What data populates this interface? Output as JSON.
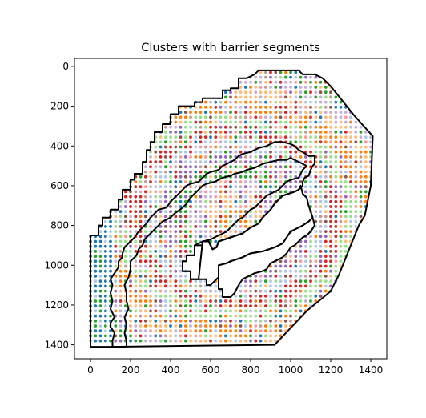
{
  "chart_data": {
    "type": "scatter",
    "title": "Clusters with barrier segments",
    "xlabel": "",
    "ylabel": "",
    "xlim": [
      -80,
      1480
    ],
    "ylim": [
      1470,
      -40
    ],
    "y_inverted": true,
    "grid": false,
    "xticks": [
      0,
      200,
      400,
      600,
      800,
      1000,
      1200,
      1400
    ],
    "yticks": [
      0,
      200,
      400,
      600,
      800,
      1000,
      1200,
      1400
    ],
    "spot_spacing": 25,
    "cluster_colors": [
      "#1f77b4",
      "#aec7e8",
      "#ff7f0e",
      "#ffbb78",
      "#2ca02c",
      "#98df8a",
      "#d62728",
      "#ff9896",
      "#9467bd",
      "#c5b0d5",
      "#8c564b",
      "#c49c94",
      "#e377c2",
      "#f7b6d2",
      "#7f7f7f",
      "#c7c7c7",
      "#bcbd22",
      "#dbdb8d",
      "#17becf",
      "#9edae5"
    ],
    "barrier_color": "#000000",
    "outer_boundary": [
      [
        0,
        1410
      ],
      [
        0,
        850
      ],
      [
        40,
        850
      ],
      [
        40,
        800
      ],
      [
        60,
        800
      ],
      [
        60,
        760
      ],
      [
        100,
        760
      ],
      [
        100,
        720
      ],
      [
        140,
        720
      ],
      [
        140,
        670
      ],
      [
        160,
        670
      ],
      [
        160,
        620
      ],
      [
        200,
        620
      ],
      [
        200,
        570
      ],
      [
        220,
        570
      ],
      [
        220,
        540
      ],
      [
        260,
        540
      ],
      [
        260,
        480
      ],
      [
        280,
        480
      ],
      [
        280,
        420
      ],
      [
        300,
        420
      ],
      [
        300,
        380
      ],
      [
        320,
        380
      ],
      [
        320,
        330
      ],
      [
        360,
        330
      ],
      [
        360,
        290
      ],
      [
        400,
        290
      ],
      [
        400,
        240
      ],
      [
        440,
        240
      ],
      [
        440,
        200
      ],
      [
        520,
        200
      ],
      [
        520,
        180
      ],
      [
        560,
        180
      ],
      [
        560,
        160
      ],
      [
        660,
        160
      ],
      [
        660,
        120
      ],
      [
        700,
        120
      ],
      [
        700,
        110
      ],
      [
        740,
        110
      ],
      [
        740,
        60
      ],
      [
        780,
        60
      ],
      [
        820,
        40
      ],
      [
        840,
        20
      ],
      [
        860,
        20
      ],
      [
        1040,
        20
      ],
      [
        1060,
        40
      ],
      [
        1120,
        40
      ],
      [
        1160,
        60
      ],
      [
        1200,
        100
      ],
      [
        1320,
        250
      ],
      [
        1410,
        350
      ],
      [
        1400,
        600
      ],
      [
        1380,
        700
      ],
      [
        1370,
        750
      ],
      [
        1340,
        800
      ],
      [
        1300,
        900
      ],
      [
        1260,
        1000
      ],
      [
        1240,
        1050
      ],
      [
        1200,
        1130
      ],
      [
        1080,
        1230
      ],
      [
        920,
        1400
      ],
      [
        100,
        1410
      ],
      [
        0,
        1410
      ]
    ],
    "inner_boundary": [
      [
        540,
        1070
      ],
      [
        500,
        1070
      ],
      [
        500,
        1030
      ],
      [
        460,
        1030
      ],
      [
        460,
        980
      ],
      [
        480,
        980
      ],
      [
        480,
        950
      ],
      [
        520,
        950
      ],
      [
        520,
        900
      ],
      [
        560,
        900
      ],
      [
        560,
        880
      ],
      [
        590,
        880
      ],
      [
        610,
        920
      ],
      [
        630,
        910
      ],
      [
        640,
        880
      ],
      [
        700,
        860
      ],
      [
        760,
        840
      ],
      [
        800,
        810
      ],
      [
        840,
        790
      ],
      [
        860,
        760
      ],
      [
        880,
        740
      ],
      [
        900,
        720
      ],
      [
        920,
        690
      ],
      [
        940,
        670
      ],
      [
        960,
        650
      ],
      [
        990,
        640
      ],
      [
        1020,
        630
      ],
      [
        1040,
        620
      ],
      [
        1060,
        600
      ],
      [
        1060,
        580
      ],
      [
        1070,
        560
      ],
      [
        1090,
        550
      ],
      [
        1100,
        520
      ],
      [
        1110,
        500
      ],
      [
        1120,
        490
      ],
      [
        1120,
        450
      ],
      [
        1090,
        450
      ],
      [
        1060,
        430
      ],
      [
        1040,
        420
      ],
      [
        1020,
        400
      ],
      [
        1000,
        390
      ],
      [
        960,
        380
      ],
      [
        920,
        380
      ],
      [
        900,
        390
      ],
      [
        880,
        400
      ],
      [
        840,
        410
      ],
      [
        820,
        420
      ],
      [
        800,
        430
      ],
      [
        760,
        440
      ],
      [
        740,
        450
      ],
      [
        720,
        470
      ],
      [
        700,
        480
      ],
      [
        680,
        490
      ],
      [
        660,
        500
      ],
      [
        640,
        520
      ],
      [
        600,
        530
      ],
      [
        580,
        540
      ],
      [
        560,
        560
      ],
      [
        540,
        580
      ],
      [
        500,
        590
      ],
      [
        480,
        600
      ],
      [
        460,
        620
      ],
      [
        440,
        640
      ],
      [
        420,
        660
      ],
      [
        400,
        680
      ],
      [
        380,
        710
      ],
      [
        340,
        720
      ],
      [
        320,
        740
      ],
      [
        300,
        760
      ],
      [
        280,
        790
      ],
      [
        260,
        810
      ],
      [
        240,
        830
      ],
      [
        220,
        860
      ],
      [
        200,
        880
      ],
      [
        170,
        910
      ],
      [
        160,
        940
      ],
      [
        160,
        960
      ],
      [
        140,
        980
      ],
      [
        140,
        1010
      ],
      [
        120,
        1040
      ],
      [
        100,
        1070
      ],
      [
        110,
        1100
      ],
      [
        100,
        1140
      ],
      [
        110,
        1180
      ],
      [
        100,
        1220
      ],
      [
        120,
        1260
      ],
      [
        100,
        1290
      ],
      [
        100,
        1310
      ],
      [
        120,
        1340
      ],
      [
        110,
        1380
      ],
      [
        110,
        1410
      ],
      [
        180,
        1410
      ],
      [
        180,
        1380
      ],
      [
        170,
        1340
      ],
      [
        180,
        1300
      ],
      [
        170,
        1260
      ],
      [
        190,
        1220
      ],
      [
        180,
        1180
      ],
      [
        180,
        1140
      ],
      [
        170,
        1100
      ],
      [
        190,
        1060
      ],
      [
        200,
        1020
      ],
      [
        200,
        980
      ],
      [
        230,
        950
      ],
      [
        240,
        920
      ],
      [
        260,
        900
      ],
      [
        270,
        870
      ],
      [
        300,
        840
      ],
      [
        330,
        810
      ],
      [
        360,
        780
      ],
      [
        400,
        760
      ],
      [
        420,
        740
      ],
      [
        460,
        710
      ],
      [
        480,
        690
      ],
      [
        500,
        660
      ],
      [
        520,
        640
      ],
      [
        540,
        620
      ],
      [
        560,
        600
      ],
      [
        580,
        590
      ],
      [
        620,
        580
      ],
      [
        640,
        570
      ],
      [
        660,
        560
      ],
      [
        700,
        550
      ],
      [
        720,
        540
      ],
      [
        760,
        530
      ],
      [
        780,
        520
      ],
      [
        820,
        510
      ],
      [
        860,
        490
      ],
      [
        900,
        480
      ],
      [
        940,
        470
      ],
      [
        980,
        470
      ],
      [
        1000,
        460
      ],
      [
        1020,
        470
      ],
      [
        1040,
        480
      ],
      [
        1060,
        490
      ],
      [
        1080,
        500
      ],
      [
        1060,
        520
      ],
      [
        1040,
        560
      ],
      [
        1000,
        570
      ],
      [
        980,
        580
      ],
      [
        960,
        600
      ],
      [
        940,
        620
      ],
      [
        920,
        630
      ],
      [
        900,
        640
      ],
      [
        880,
        650
      ],
      [
        860,
        670
      ],
      [
        840,
        690
      ],
      [
        820,
        710
      ],
      [
        800,
        720
      ],
      [
        780,
        740
      ],
      [
        760,
        760
      ],
      [
        740,
        770
      ],
      [
        720,
        790
      ],
      [
        700,
        810
      ],
      [
        680,
        830
      ],
      [
        640,
        850
      ],
      [
        620,
        860
      ],
      [
        600,
        870
      ],
      [
        560,
        880
      ]
    ],
    "hole_inner": [
      [
        540,
        1070
      ],
      [
        580,
        1070
      ],
      [
        580,
        1100
      ],
      [
        600,
        1100
      ],
      [
        620,
        1080
      ],
      [
        640,
        1060
      ],
      [
        640,
        1000
      ],
      [
        680,
        990
      ],
      [
        700,
        980
      ],
      [
        760,
        960
      ],
      [
        800,
        940
      ],
      [
        860,
        930
      ],
      [
        920,
        910
      ],
      [
        960,
        890
      ],
      [
        980,
        860
      ],
      [
        1000,
        830
      ],
      [
        1040,
        810
      ],
      [
        1060,
        800
      ],
      [
        1090,
        780
      ],
      [
        1110,
        760
      ],
      [
        1100,
        730
      ],
      [
        1090,
        700
      ],
      [
        1080,
        660
      ],
      [
        1060,
        640
      ],
      [
        1050,
        600
      ],
      [
        1040,
        620
      ],
      [
        1020,
        630
      ],
      [
        990,
        640
      ],
      [
        960,
        650
      ],
      [
        940,
        670
      ],
      [
        920,
        690
      ],
      [
        900,
        720
      ],
      [
        880,
        740
      ],
      [
        860,
        760
      ],
      [
        840,
        790
      ],
      [
        800,
        810
      ],
      [
        760,
        840
      ],
      [
        700,
        860
      ],
      [
        640,
        880
      ],
      [
        630,
        910
      ],
      [
        610,
        920
      ],
      [
        590,
        880
      ],
      [
        560,
        880
      ],
      [
        520,
        900
      ],
      [
        520,
        950
      ],
      [
        480,
        950
      ],
      [
        480,
        980
      ],
      [
        460,
        980
      ],
      [
        460,
        1030
      ],
      [
        500,
        1030
      ],
      [
        500,
        1070
      ],
      [
        540,
        1070
      ]
    ],
    "hole_lower": [
      [
        640,
        1060
      ],
      [
        640,
        1120
      ],
      [
        660,
        1120
      ],
      [
        660,
        1160
      ],
      [
        700,
        1160
      ],
      [
        720,
        1140
      ],
      [
        740,
        1100
      ],
      [
        760,
        1070
      ],
      [
        800,
        1050
      ],
      [
        820,
        1040
      ],
      [
        860,
        1030
      ],
      [
        880,
        1020
      ],
      [
        900,
        990
      ],
      [
        940,
        970
      ],
      [
        960,
        960
      ],
      [
        980,
        940
      ],
      [
        1000,
        910
      ],
      [
        1020,
        900
      ],
      [
        1040,
        880
      ],
      [
        1060,
        860
      ],
      [
        1080,
        850
      ],
      [
        1100,
        830
      ],
      [
        1120,
        800
      ],
      [
        1110,
        760
      ],
      [
        1090,
        780
      ],
      [
        1060,
        800
      ],
      [
        1040,
        810
      ],
      [
        1000,
        830
      ],
      [
        980,
        860
      ],
      [
        960,
        890
      ],
      [
        920,
        910
      ],
      [
        860,
        930
      ],
      [
        800,
        940
      ],
      [
        760,
        960
      ],
      [
        700,
        980
      ],
      [
        680,
        990
      ],
      [
        640,
        1000
      ],
      [
        640,
        1060
      ]
    ]
  }
}
